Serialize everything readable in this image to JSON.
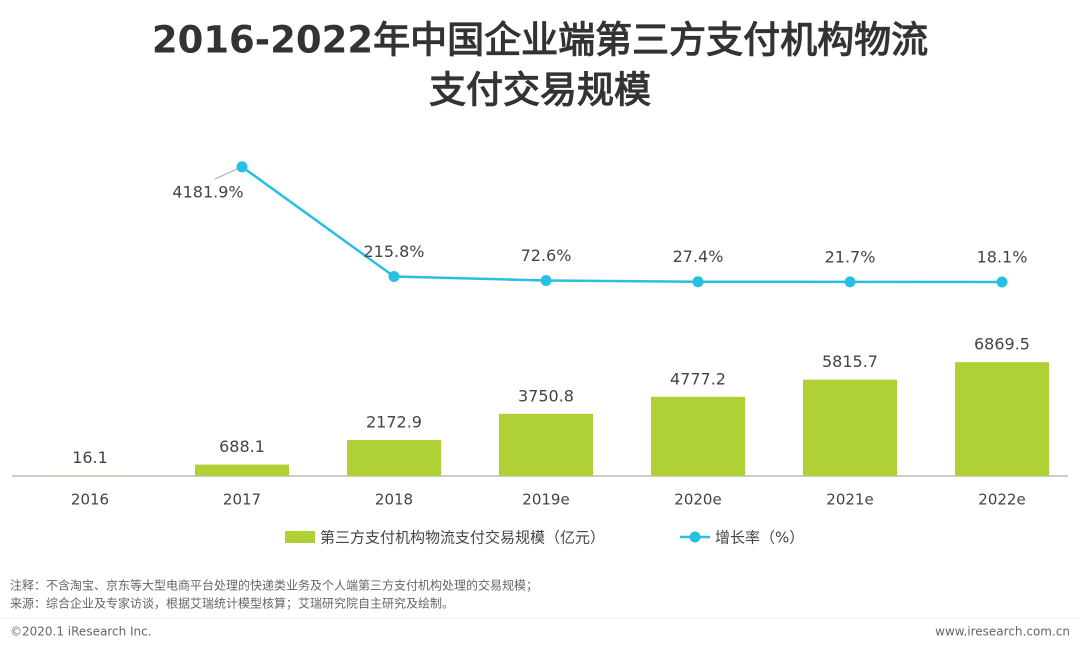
{
  "chart_data": {
    "type": "bar",
    "title": [
      "2016-2022年中国企业端第三方支付机构物流",
      "支付交易规模"
    ],
    "categories": [
      "2016",
      "2017",
      "2018",
      "2019e",
      "2020e",
      "2021e",
      "2022e"
    ],
    "series": [
      {
        "name": "第三方支付机构物流支付交易规模（亿元）",
        "type": "bar",
        "color": "#b0d136",
        "values": [
          16.1,
          688.1,
          2172.9,
          3750.8,
          4777.2,
          5815.7,
          6869.5
        ]
      },
      {
        "name": "增长率（%）",
        "type": "line",
        "axis": "y2",
        "color": "#27c0e3",
        "values": [
          null,
          4181.9,
          215.8,
          72.6,
          27.4,
          21.7,
          18.1
        ],
        "value_labels": [
          null,
          "4181.9%",
          "215.8%",
          "72.6%",
          "27.4%",
          "21.7%",
          "18.1%"
        ]
      }
    ],
    "ylim": [
      0,
      7000
    ],
    "y2lim": [
      0,
      4500
    ],
    "legend": "bottom"
  },
  "notes": [
    "注释：不含淘宝、京东等大型电商平台处理的快递类业务及个人端第三方支付机构处理的交易规模；",
    "来源：综合企业及专家访谈，根据艾瑞统计模型核算；艾瑞研究院自主研究及绘制。"
  ],
  "footer": {
    "copyright": "©2020.1 iResearch Inc.",
    "website": "www.iresearch.com.cn"
  }
}
